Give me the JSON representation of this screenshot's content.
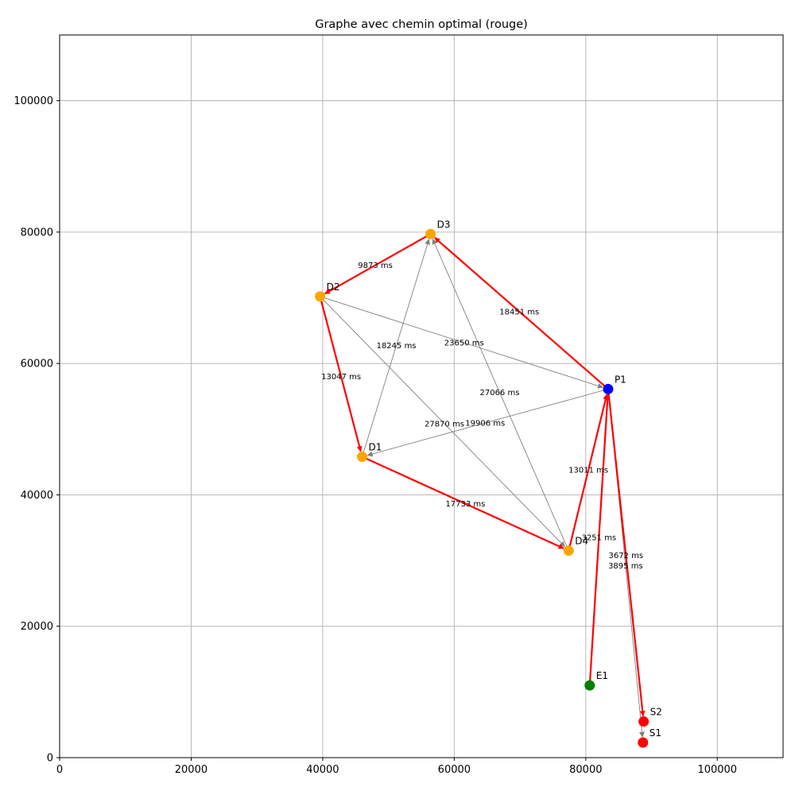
{
  "chart_data": {
    "type": "graph",
    "title": "Graphe avec chemin optimal (rouge)",
    "xlabel": "",
    "ylabel": "",
    "xlim": [
      0,
      110000
    ],
    "ylim": [
      0,
      110000
    ],
    "grid": true,
    "x_ticks": [
      0,
      20000,
      40000,
      60000,
      80000,
      100000
    ],
    "y_ticks": [
      0,
      20000,
      40000,
      60000,
      80000,
      100000
    ],
    "x_tick_labels": [
      "0",
      "20000",
      "40000",
      "60000",
      "80000",
      "100000"
    ],
    "y_tick_labels": [
      "0",
      "20000",
      "40000",
      "60000",
      "80000",
      "100000"
    ],
    "colors": {
      "start": "#008000",
      "pivot": "#0000ff",
      "delivery": "#ffa500",
      "exit": "#ff0000",
      "optimal_edge": "#ff0000",
      "other_edge": "#808080"
    },
    "nodes": [
      {
        "id": "E1",
        "x": 80600,
        "y": 11000,
        "kind": "start"
      },
      {
        "id": "P1",
        "x": 83400,
        "y": 56100,
        "kind": "pivot"
      },
      {
        "id": "D1",
        "x": 46000,
        "y": 45800,
        "kind": "delivery"
      },
      {
        "id": "D2",
        "x": 39600,
        "y": 70200,
        "kind": "delivery"
      },
      {
        "id": "D3",
        "x": 56400,
        "y": 79700,
        "kind": "delivery"
      },
      {
        "id": "D4",
        "x": 77400,
        "y": 31500,
        "kind": "delivery"
      },
      {
        "id": "S1",
        "x": 88700,
        "y": 2300,
        "kind": "exit"
      },
      {
        "id": "S2",
        "x": 88800,
        "y": 5500,
        "kind": "exit"
      }
    ],
    "edges": [
      {
        "from": "P1",
        "to": "D3",
        "label": "18451 ms",
        "optimal": true
      },
      {
        "from": "D3",
        "to": "D2",
        "label": "9873 ms",
        "optimal": true
      },
      {
        "from": "D2",
        "to": "D1",
        "label": "13047 ms",
        "optimal": true
      },
      {
        "from": "D1",
        "to": "D4",
        "label": "17733 ms",
        "optimal": true
      },
      {
        "from": "D4",
        "to": "P1",
        "label": "13011 ms",
        "optimal": true
      },
      {
        "from": "E1",
        "to": "P1",
        "label": "3251 ms",
        "optimal": true
      },
      {
        "from": "P1",
        "to": "S2",
        "label": "3672 ms",
        "optimal": true
      },
      {
        "from": "D1",
        "to": "D3",
        "label": "18245 ms",
        "optimal": false
      },
      {
        "from": "D2",
        "to": "P1",
        "label": "23650 ms",
        "optimal": false
      },
      {
        "from": "D4",
        "to": "D3",
        "label": "27066 ms",
        "optimal": false
      },
      {
        "from": "D2",
        "to": "D4",
        "label": "27870 ms",
        "optimal": false
      },
      {
        "from": "P1",
        "to": "D1",
        "label": "19906 ms",
        "optimal": false
      },
      {
        "from": "P1",
        "to": "S1",
        "label": "3895 ms",
        "optimal": false
      }
    ]
  }
}
